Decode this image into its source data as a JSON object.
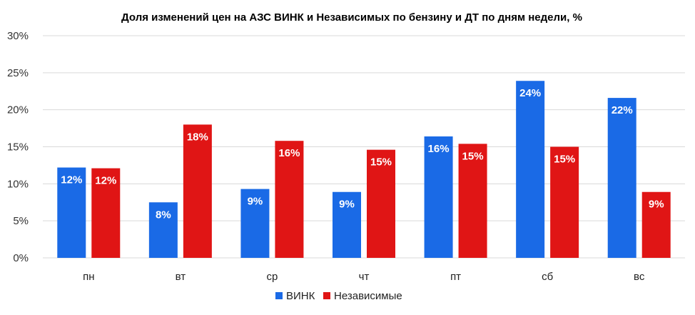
{
  "chart_data": {
    "type": "bar",
    "title": "Доля изменений цен на АЗС ВИНК и Независимых по бензину и ДТ по дням недели, %",
    "xlabel": "",
    "ylabel": "",
    "categories": [
      "пн",
      "вт",
      "ср",
      "чт",
      "пт",
      "сб",
      "вс"
    ],
    "ylim": [
      0,
      30
    ],
    "yticks": [
      0,
      5,
      10,
      15,
      20,
      25,
      30
    ],
    "ytick_labels": [
      "0%",
      "5%",
      "10%",
      "15%",
      "20%",
      "25%",
      "30%"
    ],
    "grid": true,
    "legend_position": "bottom",
    "series": [
      {
        "name": "ВИНК",
        "color": "#1a6ae6",
        "values": [
          12.2,
          7.5,
          9.3,
          8.9,
          16.4,
          23.9,
          21.6
        ],
        "labels": [
          "12%",
          "8%",
          "9%",
          "9%",
          "16%",
          "24%",
          "22%"
        ]
      },
      {
        "name": "Независимые",
        "color": "#e01515",
        "values": [
          12.1,
          18.0,
          15.8,
          14.6,
          15.4,
          15.0,
          8.9
        ],
        "labels": [
          "12%",
          "18%",
          "16%",
          "15%",
          "15%",
          "15%",
          "9%"
        ]
      }
    ]
  }
}
